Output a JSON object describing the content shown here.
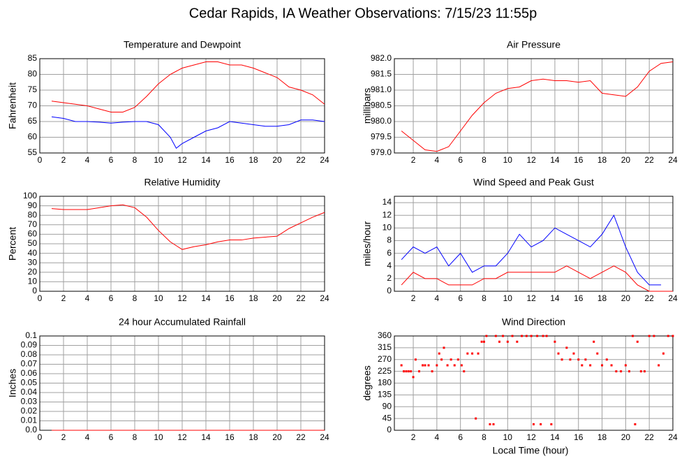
{
  "title": "Cedar Rapids, IA Weather Observations: 7/15/23 11:55p",
  "chart_data": [
    {
      "type": "line",
      "title": "Temperature and Dewpoint",
      "ylabel": "Fahrenheit",
      "xlim": [
        0,
        24
      ],
      "xticks": [
        0,
        2,
        4,
        6,
        8,
        10,
        12,
        14,
        16,
        18,
        20,
        22,
        24
      ],
      "ylim": [
        55,
        85
      ],
      "yticks": [
        55,
        60,
        65,
        70,
        75,
        80,
        85
      ],
      "grid": true,
      "x": [
        1,
        2,
        3,
        4,
        5,
        6,
        7,
        8,
        9,
        10,
        11,
        11.5,
        12,
        13,
        14,
        15,
        16,
        17,
        18,
        19,
        20,
        21,
        22,
        23,
        24
      ],
      "series": [
        {
          "color": "#ff0000",
          "values": [
            71.5,
            71,
            70.5,
            70,
            69,
            68,
            68,
            69.5,
            73,
            77,
            80,
            81,
            82,
            83,
            84,
            84,
            83,
            83,
            82,
            80.5,
            79,
            76,
            75,
            73.5,
            70.5
          ]
        },
        {
          "color": "#0000ff",
          "values": [
            66.5,
            66,
            65,
            65,
            64.8,
            64.5,
            64.8,
            65,
            65,
            64,
            60,
            56.5,
            58,
            60,
            62,
            63,
            65,
            64.5,
            64,
            63.5,
            63.5,
            64,
            65.5,
            65.5,
            65
          ]
        }
      ]
    },
    {
      "type": "line",
      "title": "Air Pressure",
      "ylabel": "millibars",
      "xlim": [
        0.4,
        24
      ],
      "xticks": [
        2,
        4,
        6,
        8,
        10,
        12,
        14,
        16,
        18,
        20,
        22,
        24
      ],
      "ylim": [
        979,
        982
      ],
      "yticks": [
        {
          "value": 979,
          "label": "979.0"
        },
        979.5,
        {
          "value": 980,
          "label": "980.0"
        },
        980.5,
        {
          "value": 981,
          "label": "981.0"
        },
        981.5,
        {
          "value": 982,
          "label": "982.0"
        }
      ],
      "grid": true,
      "x": [
        1,
        2,
        3,
        4,
        5,
        6,
        7,
        8,
        9,
        10,
        11,
        12,
        13,
        14,
        15,
        16,
        17,
        18,
        19,
        20,
        21,
        22,
        23,
        24
      ],
      "series": [
        {
          "color": "#ff0000",
          "values": [
            979.7,
            979.4,
            979.1,
            979.05,
            979.2,
            979.7,
            980.2,
            980.6,
            980.9,
            981.05,
            981.1,
            981.3,
            981.35,
            981.3,
            981.3,
            981.25,
            981.3,
            980.9,
            980.85,
            980.8,
            981.1,
            981.6,
            981.85,
            981.9
          ]
        }
      ]
    },
    {
      "type": "line",
      "title": "Relative Humidity",
      "ylabel": "Percent",
      "xlim": [
        0,
        24
      ],
      "xticks": [
        0,
        2,
        4,
        6,
        8,
        10,
        12,
        14,
        16,
        18,
        20,
        22,
        24
      ],
      "ylim": [
        0,
        100
      ],
      "yticks": [
        0,
        10,
        20,
        30,
        40,
        50,
        60,
        70,
        80,
        90,
        100
      ],
      "grid": true,
      "x": [
        1,
        2,
        3,
        4,
        5,
        6,
        7,
        8,
        9,
        10,
        11,
        12,
        13,
        14,
        15,
        16,
        17,
        18,
        19,
        20,
        21,
        22,
        23,
        24
      ],
      "series": [
        {
          "color": "#ff0000",
          "values": [
            87,
            86,
            86,
            86,
            88,
            90,
            91,
            88,
            78,
            64,
            52,
            44,
            47,
            49,
            52,
            54,
            54,
            56,
            57,
            58,
            66,
            72,
            78,
            83
          ]
        }
      ]
    },
    {
      "type": "line",
      "title": "Wind Speed and Peak Gust",
      "ylabel": "miles/hour",
      "xlim": [
        0.4,
        24
      ],
      "xticks": [
        2,
        4,
        6,
        8,
        10,
        12,
        14,
        16,
        18,
        20,
        22,
        24
      ],
      "ylim": [
        0,
        15
      ],
      "yticks": [
        0,
        2,
        4,
        6,
        8,
        10,
        12,
        14
      ],
      "grid": true,
      "x": [
        1,
        2,
        3,
        4,
        5,
        6,
        7,
        8,
        9,
        10,
        11,
        12,
        13,
        14,
        15,
        16,
        17,
        18,
        19,
        20,
        21,
        22,
        23,
        24
      ],
      "series": [
        {
          "color": "#0000ff",
          "values": [
            5,
            7,
            6,
            7,
            4,
            6,
            3,
            4,
            4,
            6,
            9,
            7,
            8,
            10,
            9,
            8,
            7,
            9,
            12,
            7,
            3,
            1,
            1,
            null
          ]
        },
        {
          "color": "#ff0000",
          "values": [
            1,
            3,
            2,
            2,
            1,
            1,
            1,
            2,
            2,
            3,
            3,
            3,
            3,
            3,
            4,
            3,
            2,
            3,
            4,
            3,
            1,
            0,
            0,
            0
          ]
        }
      ]
    },
    {
      "type": "line",
      "title": "24 hour Accumulated Rainfall",
      "ylabel": "Inches",
      "xlim": [
        0,
        24
      ],
      "xticks": [
        0,
        2,
        4,
        6,
        8,
        10,
        12,
        14,
        16,
        18,
        20,
        22,
        24
      ],
      "ylim": [
        0,
        0.1
      ],
      "yticks": [
        {
          "value": 0,
          "label": "0.0"
        },
        0.01,
        0.02,
        0.03,
        0.04,
        0.05,
        0.06,
        0.07,
        0.08,
        0.09,
        0.1
      ],
      "grid": true,
      "x": [
        1,
        24
      ],
      "series": [
        {
          "color": "#ff0000",
          "values": [
            0,
            0
          ]
        }
      ]
    },
    {
      "type": "scatter",
      "title": "Wind Direction",
      "ylabel": "degrees",
      "xlabel": "Local Time (hour)",
      "xlim": [
        0.4,
        24
      ],
      "xticks": [
        2,
        4,
        6,
        8,
        10,
        12,
        14,
        16,
        18,
        20,
        22,
        24
      ],
      "ylim": [
        0,
        360
      ],
      "yticks": [
        0,
        45,
        90,
        135,
        180,
        225,
        270,
        315,
        360
      ],
      "grid": true,
      "x": [
        1,
        1.2,
        1.4,
        1.6,
        1.8,
        2,
        2.2,
        2.5,
        2.8,
        3,
        3.3,
        3.6,
        4,
        4.2,
        4.4,
        4.6,
        4.9,
        5.2,
        5.5,
        5.8,
        6.1,
        6.3,
        6.6,
        7,
        7.3,
        7.5,
        7.8,
        8,
        8.2,
        8.5,
        8.8,
        9,
        9.3,
        9.6,
        10,
        10.4,
        10.8,
        11.2,
        11.6,
        12,
        12.2,
        12.5,
        12.8,
        13,
        13.3,
        13.7,
        14,
        14.3,
        14.6,
        15,
        15.3,
        15.6,
        16,
        16.3,
        16.6,
        17,
        17.3,
        17.6,
        18,
        18.4,
        18.8,
        19.2,
        19.6,
        20,
        20.3,
        20.6,
        20.8,
        21,
        21.3,
        21.6,
        22,
        22.4,
        22.8,
        23.2,
        23.6,
        24
      ],
      "series": [
        {
          "color": "#ff0000",
          "values": [
            248,
            225,
            225,
            225,
            225,
            203,
            270,
            225,
            248,
            248,
            248,
            225,
            248,
            293,
            270,
            315,
            248,
            270,
            248,
            270,
            248,
            225,
            293,
            293,
            45,
            293,
            338,
            338,
            360,
            23,
            23,
            360,
            338,
            360,
            338,
            360,
            338,
            360,
            360,
            360,
            23,
            360,
            23,
            360,
            360,
            23,
            338,
            293,
            270,
            315,
            270,
            293,
            270,
            248,
            270,
            248,
            338,
            293,
            248,
            270,
            248,
            225,
            225,
            248,
            225,
            360,
            23,
            338,
            225,
            225,
            360,
            360,
            248,
            293,
            360,
            360
          ]
        }
      ]
    }
  ]
}
